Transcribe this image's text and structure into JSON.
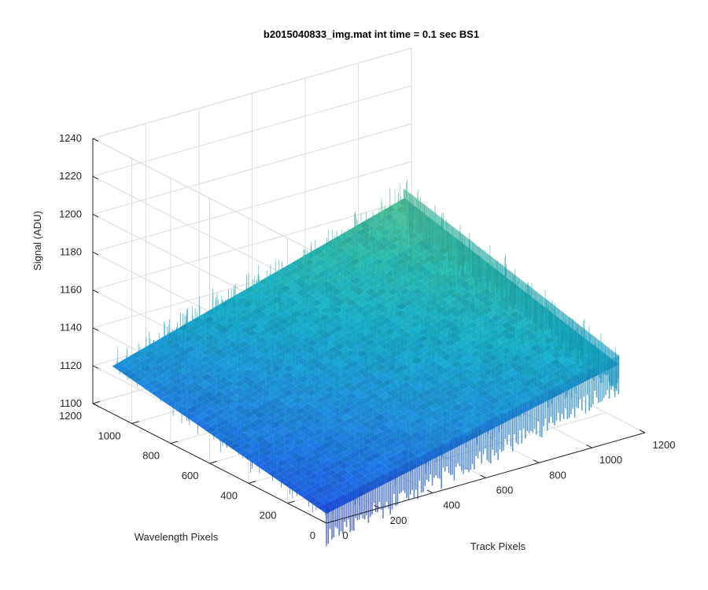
{
  "chart_data": {
    "type": "surface",
    "title": "b2015040833_img.mat int time = 0.1 sec   BS1",
    "xlabel": "Track Pixels",
    "ylabel": "Wavelength Pixels",
    "zlabel": "Signal (ADU)",
    "x_ticks": [
      0,
      200,
      400,
      600,
      800,
      1000,
      1200
    ],
    "y_ticks": [
      0,
      200,
      400,
      600,
      800,
      1000,
      1200
    ],
    "z_ticks": [
      1100,
      1120,
      1140,
      1160,
      1180,
      1200,
      1220,
      1240
    ],
    "xlim": [
      0,
      1200
    ],
    "ylim": [
      0,
      1200
    ],
    "zlim": [
      1100,
      1240
    ],
    "surface": {
      "x_range": [
        0,
        1100
      ],
      "y_range": [
        0,
        1100
      ],
      "corner_values": {
        "x0_y0": 1105,
        "x1100_y0": 1140,
        "x0_y1100": 1125,
        "x1100_y1100": 1170
      },
      "noise_amplitude": 12
    },
    "colormap": [
      "#1f3fd8",
      "#1f68e0",
      "#1c90d6",
      "#17a9c4",
      "#2bb6a8",
      "#5bbf8c",
      "#8ec276"
    ],
    "grid": true
  }
}
